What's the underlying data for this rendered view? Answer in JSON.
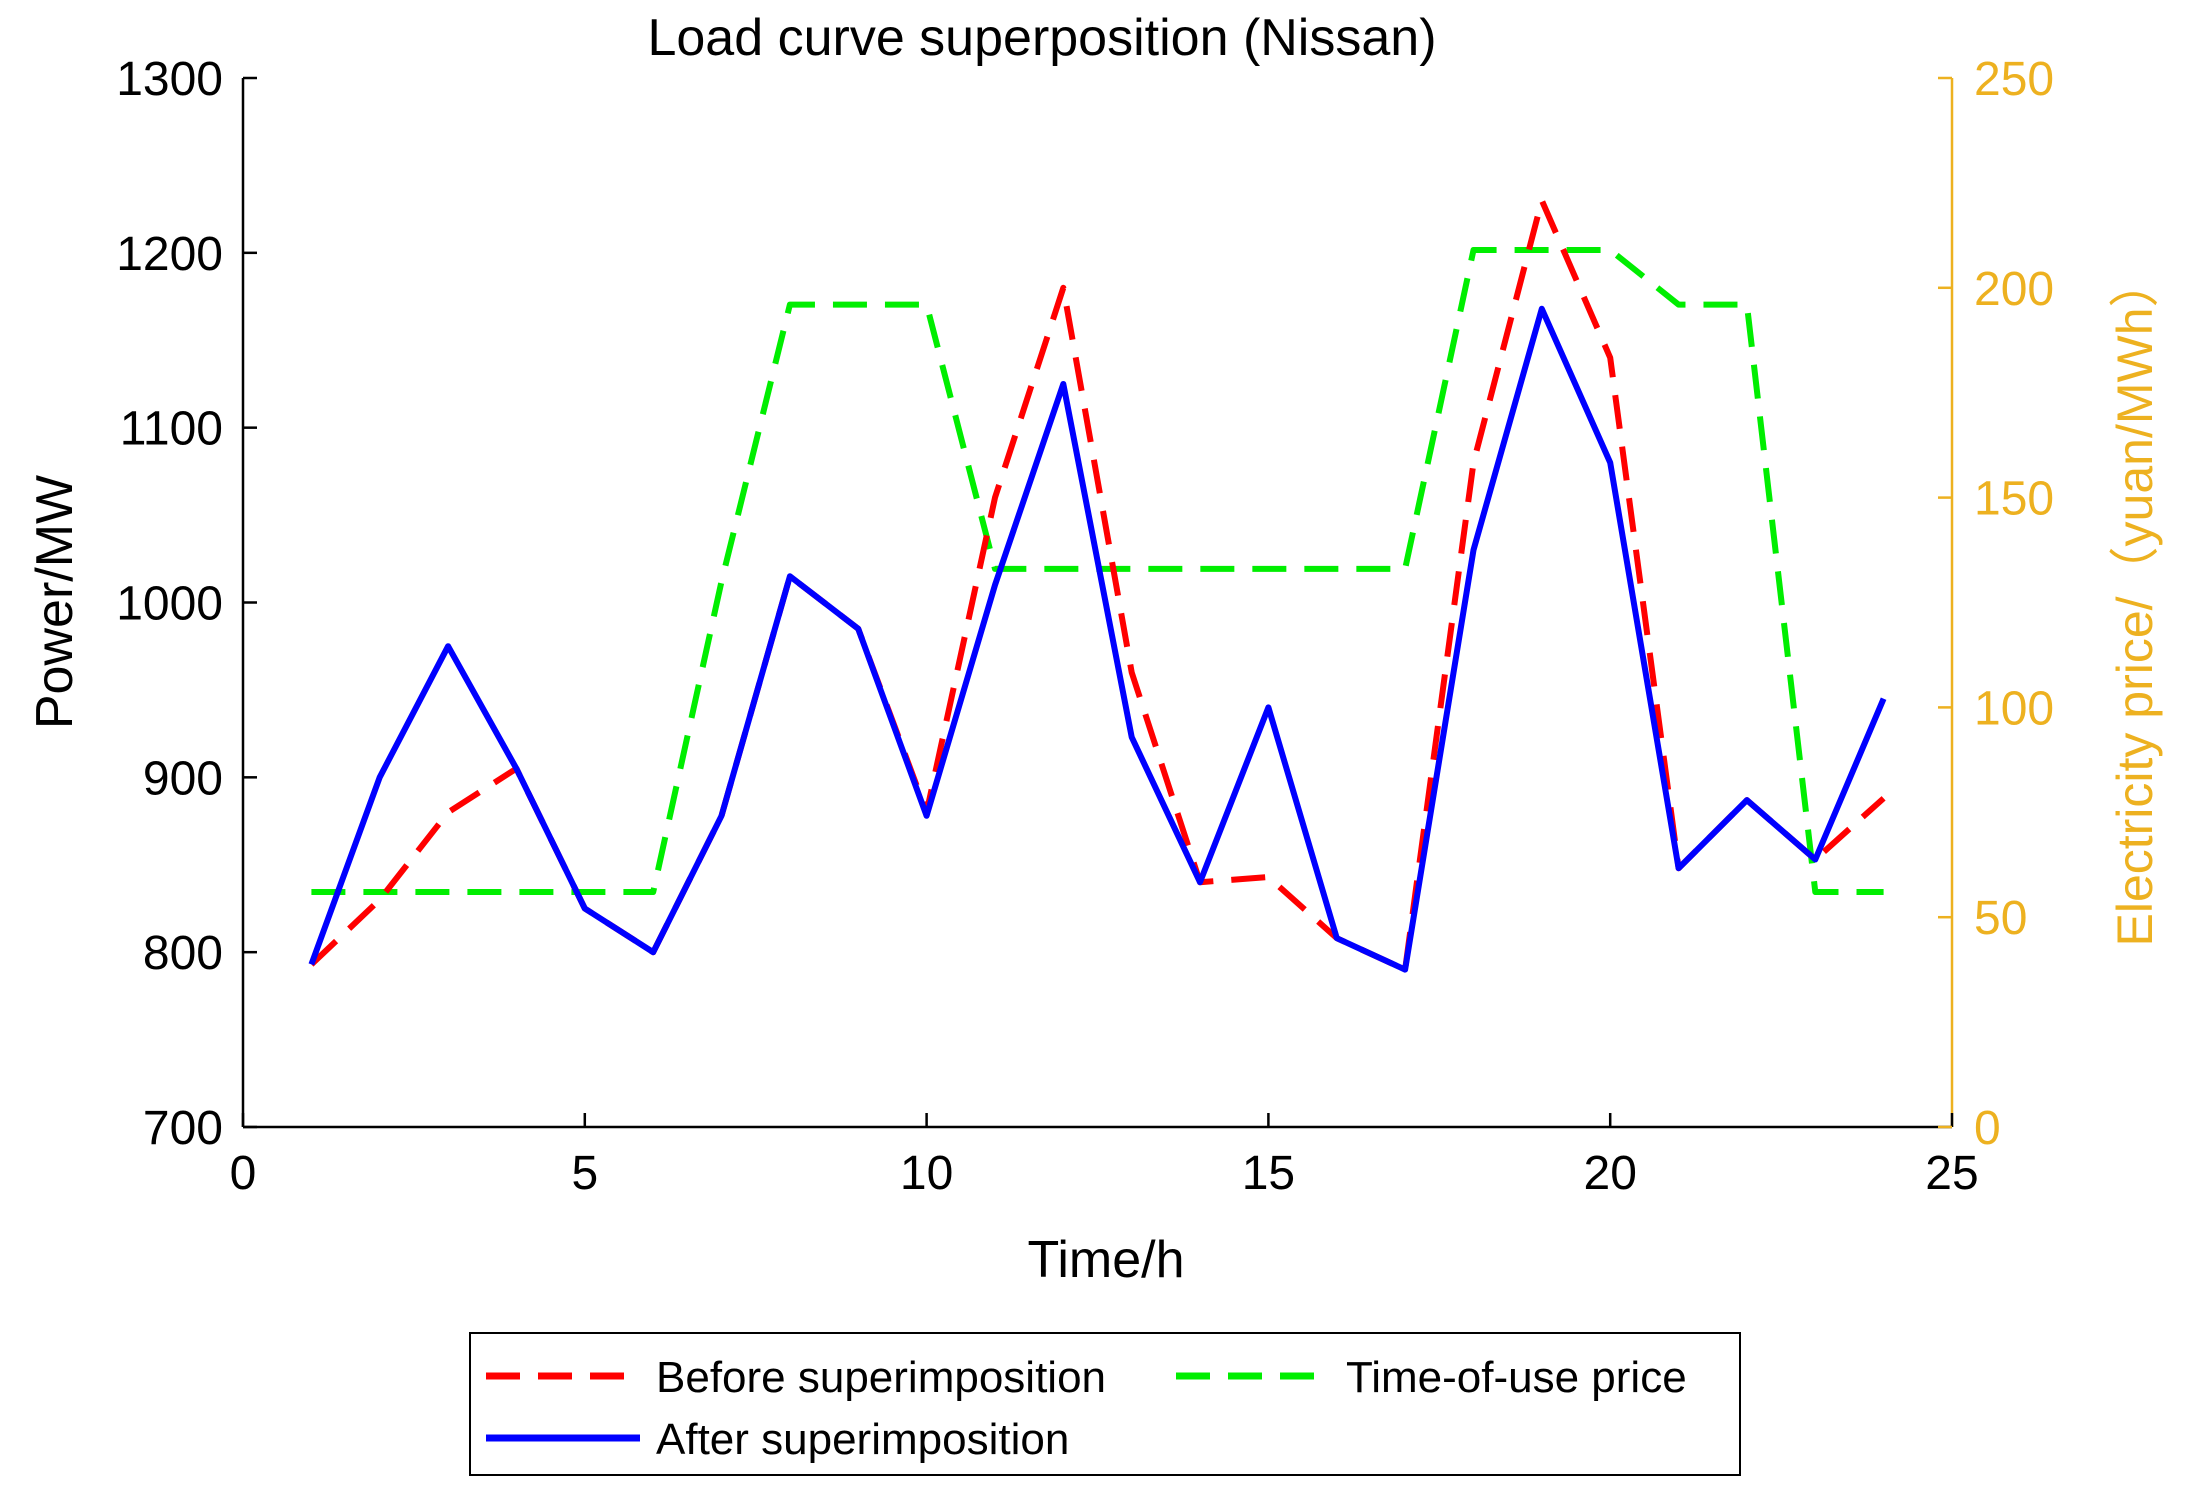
{
  "chart_data": {
    "type": "line",
    "title": "Load curve superposition (Nissan)",
    "xlabel": "Time/h",
    "ylabel": "Power/MW",
    "y2label": "Electricity price/（yuan/MWh）",
    "xlim": [
      0,
      25
    ],
    "ylim": [
      700,
      1300
    ],
    "y2lim": [
      0,
      250
    ],
    "xticks": [
      0,
      5,
      10,
      15,
      20,
      25
    ],
    "yticks": [
      700,
      800,
      900,
      1000,
      1100,
      1200,
      1300
    ],
    "y2ticks": [
      0,
      50,
      100,
      150,
      200,
      250
    ],
    "legend_position": "bottom",
    "grid": false,
    "series": [
      {
        "name": "Before superimposition",
        "axis": "left",
        "color": "#ff0000",
        "style": "dashed",
        "x": [
          1,
          2,
          3,
          4,
          5,
          6,
          7,
          8,
          9,
          10,
          11,
          12,
          13,
          14,
          15,
          16,
          17,
          18,
          19,
          20,
          21,
          22,
          23,
          24
        ],
        "values": [
          793,
          830,
          880,
          905,
          825,
          800,
          878,
          1015,
          985,
          880,
          1060,
          1180,
          960,
          840,
          843,
          808,
          790,
          1080,
          1230,
          1140,
          848,
          887,
          853,
          888
        ]
      },
      {
        "name": "After superimposition",
        "axis": "left",
        "color": "#0000ff",
        "style": "solid",
        "x": [
          1,
          2,
          3,
          4,
          5,
          6,
          7,
          8,
          9,
          10,
          11,
          12,
          13,
          14,
          15,
          16,
          17,
          18,
          19,
          20,
          21,
          22,
          23,
          24
        ],
        "values": [
          793,
          900,
          975,
          905,
          825,
          800,
          878,
          1015,
          985,
          878,
          1010,
          1125,
          923,
          840,
          940,
          808,
          790,
          1030,
          1168,
          1080,
          848,
          887,
          853,
          945
        ]
      },
      {
        "name": "Time-of-use price",
        "axis": "right",
        "color": "#00ee00",
        "style": "dashed",
        "x": [
          1,
          2,
          3,
          4,
          5,
          6,
          7,
          8,
          9,
          10,
          11,
          12,
          13,
          14,
          15,
          16,
          17,
          18,
          19,
          20,
          21,
          22,
          23,
          24
        ],
        "values": [
          56,
          56,
          56,
          56,
          56,
          56,
          130,
          196,
          196,
          196,
          133,
          133,
          133,
          133,
          133,
          133,
          133,
          209,
          209,
          209,
          196,
          196,
          56,
          56
        ]
      }
    ]
  },
  "colors": {
    "axis_left": "#000000",
    "axis_right": "#edb120"
  }
}
